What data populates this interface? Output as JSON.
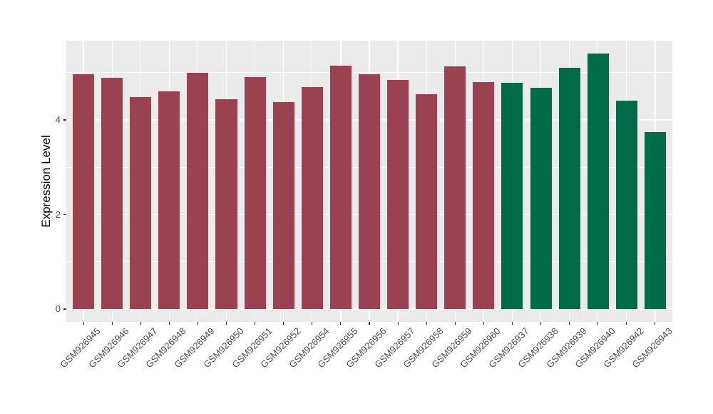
{
  "chart_data": {
    "type": "bar",
    "title": "",
    "xlabel": "",
    "ylabel": "Expression Level",
    "categories": [
      "GSM926945",
      "GSM926946",
      "GSM926947",
      "GSM926948",
      "GSM926949",
      "GSM926950",
      "GSM926951",
      "GSM926952",
      "GSM926954",
      "GSM926955",
      "GSM926956",
      "GSM926957",
      "GSM926958",
      "GSM926959",
      "GSM926960",
      "GSM926937",
      "GSM926938",
      "GSM926939",
      "GSM926940",
      "GSM926942",
      "GSM926943"
    ],
    "values": [
      4.96,
      4.89,
      4.48,
      4.6,
      5.0,
      4.44,
      4.9,
      4.38,
      4.7,
      5.15,
      4.96,
      4.85,
      4.55,
      5.14,
      4.8,
      4.78,
      4.68,
      5.1,
      5.4,
      4.41,
      3.74
    ],
    "bar_groups": [
      0,
      0,
      0,
      0,
      0,
      0,
      0,
      0,
      0,
      0,
      0,
      0,
      0,
      0,
      0,
      1,
      1,
      1,
      1,
      1,
      1
    ],
    "group_colors": [
      "#9B4252",
      "#006B48"
    ],
    "yticks": [
      0,
      2,
      4
    ],
    "ytick_labels": [
      "0",
      "2",
      "4"
    ],
    "minor_yticks": [
      1,
      3,
      5
    ],
    "ylim": [
      -0.272,
      5.676
    ],
    "bar_width_ratio": 0.75,
    "grid": true,
    "legend": "none",
    "colors": {
      "panel_background": "#EBEBEB",
      "major_gridline": "#FFFFFF",
      "minor_gridline": "#FFFFFF",
      "tick_mark": "#333333",
      "tick_label": "#4D4D4D",
      "axis_title": "#000000"
    }
  }
}
